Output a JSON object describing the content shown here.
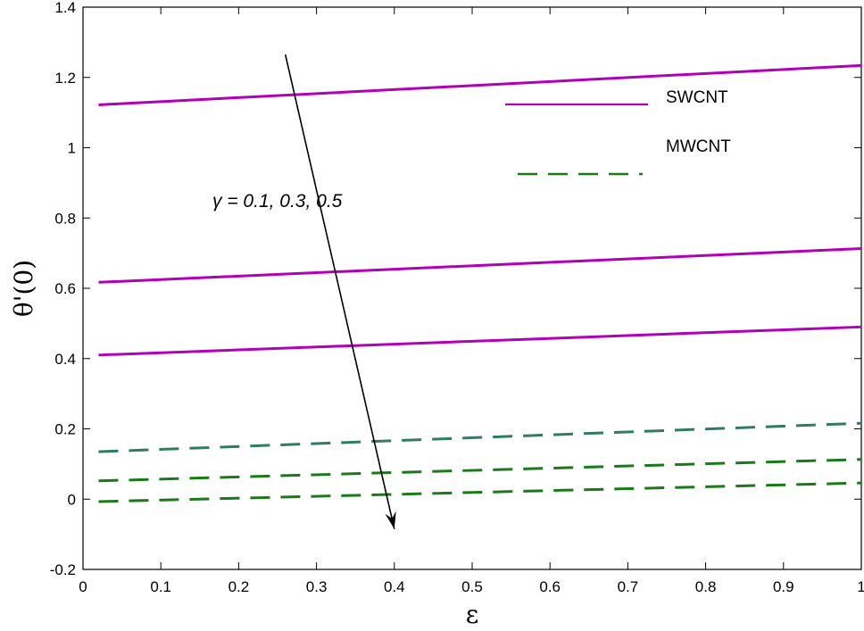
{
  "chart_data": {
    "type": "line",
    "xlabel": "ε",
    "ylabel": "θ'(0)",
    "xlim": [
      0,
      1
    ],
    "ylim": [
      -0.2,
      1.4
    ],
    "xticks": [
      "0",
      "0.1",
      "0.2",
      "0.3",
      "0.4",
      "0.5",
      "0.6",
      "0.7",
      "0.8",
      "0.9",
      "1"
    ],
    "yticks": [
      "-0.2",
      "0",
      "0.2",
      "0.4",
      "0.6",
      "0.8",
      "1",
      "1.2",
      "1.4"
    ],
    "grid": false,
    "legend_position": "top-right",
    "series": [
      {
        "name": "SWCNT",
        "style": "solid",
        "color": "#b000b8",
        "x": [
          0.02,
          1.0
        ],
        "y": [
          1.122,
          1.234
        ]
      },
      {
        "name": "SWCNT",
        "style": "solid",
        "color": "#b000b8",
        "x": [
          0.02,
          1.0
        ],
        "y": [
          0.617,
          0.713
        ]
      },
      {
        "name": "SWCNT",
        "style": "solid",
        "color": "#b000b8",
        "x": [
          0.02,
          1.0
        ],
        "y": [
          0.41,
          0.49
        ]
      },
      {
        "name": "MWCNT",
        "style": "dashed",
        "color": "#2f7d5c",
        "x": [
          0.02,
          1.0
        ],
        "y": [
          0.135,
          0.216
        ]
      },
      {
        "name": "MWCNT",
        "style": "dashed",
        "color": "#1a7a1a",
        "x": [
          0.02,
          1.0
        ],
        "y": [
          0.052,
          0.113
        ]
      },
      {
        "name": "MWCNT",
        "style": "dashed",
        "color": "#1a7a1a",
        "x": [
          0.02,
          1.0
        ],
        "y": [
          -0.007,
          0.046
        ]
      }
    ],
    "legend": [
      {
        "label": "SWCNT",
        "style": "solid",
        "color": "#b000b8"
      },
      {
        "label": "MWCNT",
        "style": "dashed",
        "color": "#1a7a1a"
      }
    ],
    "annotation": {
      "text": "γ = 0.1, 0.3, 0.5",
      "arrow_from": [
        0.26,
        1.265
      ],
      "arrow_to": [
        0.4,
        -0.085
      ]
    }
  }
}
